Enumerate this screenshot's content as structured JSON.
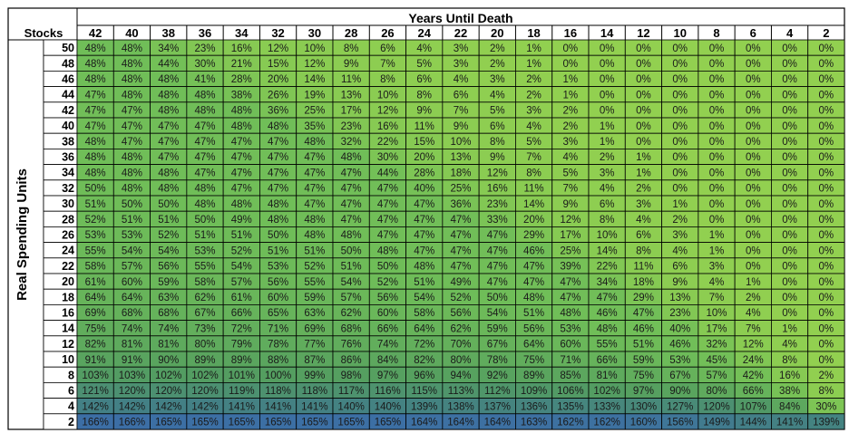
{
  "chart_data": {
    "type": "heatmap",
    "title": "Years Until Death",
    "corner_label": "Stocks",
    "ylabel": "Real Spending Units",
    "x_categories": [
      "42",
      "40",
      "38",
      "36",
      "34",
      "32",
      "30",
      "28",
      "26",
      "24",
      "22",
      "20",
      "18",
      "16",
      "14",
      "12",
      "10",
      "8",
      "6",
      "4",
      "2"
    ],
    "y_categories": [
      "50",
      "48",
      "46",
      "44",
      "42",
      "40",
      "38",
      "36",
      "34",
      "32",
      "30",
      "28",
      "26",
      "24",
      "22",
      "20",
      "18",
      "16",
      "14",
      "12",
      "10",
      "8",
      "6",
      "4",
      "2"
    ],
    "values": [
      [
        48,
        48,
        34,
        23,
        16,
        12,
        10,
        8,
        6,
        4,
        3,
        2,
        1,
        0,
        0,
        0,
        0,
        0,
        0,
        0,
        0
      ],
      [
        48,
        48,
        44,
        30,
        21,
        15,
        12,
        9,
        7,
        5,
        3,
        2,
        1,
        0,
        0,
        0,
        0,
        0,
        0,
        0,
        0
      ],
      [
        48,
        48,
        48,
        41,
        28,
        20,
        14,
        11,
        8,
        6,
        4,
        3,
        2,
        1,
        0,
        0,
        0,
        0,
        0,
        0,
        0
      ],
      [
        47,
        48,
        48,
        48,
        38,
        26,
        19,
        13,
        10,
        8,
        6,
        4,
        2,
        1,
        0,
        0,
        0,
        0,
        0,
        0,
        0
      ],
      [
        47,
        47,
        48,
        48,
        48,
        36,
        25,
        17,
        12,
        9,
        7,
        5,
        3,
        2,
        0,
        0,
        0,
        0,
        0,
        0,
        0
      ],
      [
        47,
        47,
        47,
        47,
        48,
        48,
        35,
        23,
        16,
        11,
        9,
        6,
        4,
        2,
        1,
        0,
        0,
        0,
        0,
        0,
        0
      ],
      [
        48,
        47,
        47,
        47,
        47,
        47,
        48,
        32,
        22,
        15,
        10,
        8,
        5,
        3,
        1,
        0,
        0,
        0,
        0,
        0,
        0
      ],
      [
        48,
        48,
        47,
        47,
        47,
        47,
        47,
        48,
        30,
        20,
        13,
        9,
        7,
        4,
        2,
        1,
        0,
        0,
        0,
        0,
        0
      ],
      [
        48,
        48,
        48,
        47,
        47,
        47,
        47,
        47,
        44,
        28,
        18,
        12,
        8,
        5,
        3,
        1,
        0,
        0,
        0,
        0,
        0
      ],
      [
        50,
        48,
        48,
        48,
        47,
        47,
        47,
        47,
        47,
        40,
        25,
        16,
        11,
        7,
        4,
        2,
        0,
        0,
        0,
        0,
        0
      ],
      [
        51,
        50,
        50,
        48,
        48,
        48,
        47,
        47,
        47,
        47,
        36,
        23,
        14,
        9,
        6,
        3,
        1,
        0,
        0,
        0,
        0
      ],
      [
        52,
        51,
        51,
        50,
        49,
        48,
        48,
        47,
        47,
        47,
        47,
        33,
        20,
        12,
        8,
        4,
        2,
        0,
        0,
        0,
        0
      ],
      [
        53,
        53,
        52,
        51,
        51,
        50,
        48,
        48,
        47,
        47,
        47,
        47,
        29,
        17,
        10,
        6,
        3,
        1,
        0,
        0,
        0
      ],
      [
        55,
        54,
        54,
        53,
        52,
        51,
        51,
        50,
        48,
        47,
        47,
        47,
        46,
        25,
        14,
        8,
        4,
        1,
        0,
        0,
        0
      ],
      [
        58,
        57,
        56,
        55,
        54,
        53,
        52,
        51,
        50,
        48,
        47,
        47,
        47,
        39,
        22,
        11,
        6,
        3,
        0,
        0,
        0
      ],
      [
        61,
        60,
        59,
        58,
        57,
        56,
        55,
        54,
        52,
        51,
        49,
        47,
        47,
        47,
        34,
        18,
        9,
        4,
        1,
        0,
        0
      ],
      [
        64,
        64,
        63,
        62,
        61,
        60,
        59,
        57,
        56,
        54,
        52,
        50,
        48,
        47,
        47,
        29,
        13,
        7,
        2,
        0,
        0
      ],
      [
        69,
        68,
        68,
        67,
        66,
        65,
        63,
        62,
        60,
        58,
        56,
        54,
        51,
        48,
        46,
        47,
        23,
        10,
        4,
        0,
        0
      ],
      [
        75,
        74,
        74,
        73,
        72,
        71,
        69,
        68,
        66,
        64,
        62,
        59,
        56,
        53,
        48,
        46,
        40,
        17,
        7,
        1,
        0
      ],
      [
        82,
        81,
        81,
        80,
        79,
        78,
        77,
        76,
        74,
        72,
        70,
        67,
        64,
        60,
        55,
        51,
        46,
        32,
        12,
        4,
        0
      ],
      [
        91,
        91,
        90,
        89,
        89,
        88,
        87,
        86,
        84,
        82,
        80,
        78,
        75,
        71,
        66,
        59,
        53,
        45,
        24,
        8,
        0
      ],
      [
        103,
        103,
        102,
        102,
        101,
        100,
        99,
        98,
        97,
        96,
        94,
        92,
        89,
        85,
        81,
        75,
        67,
        57,
        42,
        16,
        2
      ],
      [
        121,
        120,
        120,
        120,
        119,
        118,
        118,
        117,
        116,
        115,
        113,
        112,
        109,
        106,
        102,
        97,
        90,
        80,
        66,
        38,
        8
      ],
      [
        142,
        142,
        142,
        142,
        141,
        141,
        141,
        140,
        140,
        139,
        138,
        137,
        136,
        135,
        133,
        130,
        127,
        120,
        107,
        84,
        30
      ],
      [
        166,
        166,
        165,
        165,
        165,
        165,
        165,
        165,
        165,
        164,
        164,
        164,
        163,
        162,
        162,
        160,
        156,
        149,
        144,
        141,
        139
      ]
    ]
  }
}
